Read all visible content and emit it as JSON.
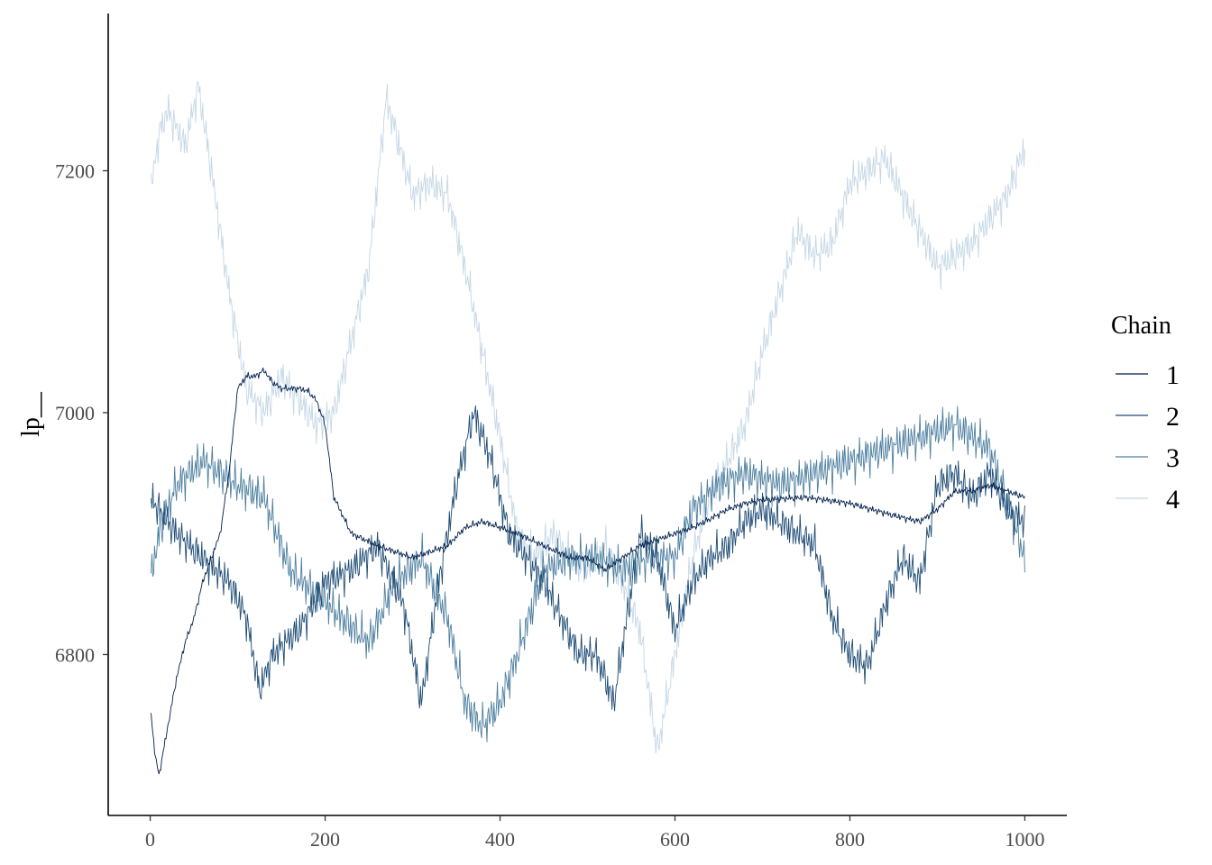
{
  "chart_data": {
    "type": "line",
    "title": "",
    "xlabel": "",
    "ylabel": "lp__",
    "xlim": [
      -48,
      1048
    ],
    "ylim": [
      6667,
      7330
    ],
    "x_ticks": [
      0,
      200,
      400,
      600,
      800,
      1000
    ],
    "x_tick_labels": [
      "0",
      "200",
      "400",
      "600",
      "800",
      "1000"
    ],
    "y_ticks": [
      6800,
      7000,
      7200
    ],
    "y_tick_labels": [
      "6800",
      "7000",
      "7200"
    ],
    "grid": false,
    "legend": {
      "title": "Chain",
      "position": "right"
    },
    "iterations": 1000,
    "series": [
      {
        "name": "1",
        "color": "#011f4b",
        "anchors_x": [
          0,
          5,
          10,
          20,
          30,
          40,
          50,
          60,
          70,
          80,
          90,
          100,
          110,
          120,
          130,
          140,
          150,
          160,
          170,
          180,
          190,
          200,
          210,
          230,
          260,
          300,
          340,
          360,
          380,
          400,
          420,
          450,
          480,
          500,
          520,
          540,
          560,
          580,
          600,
          620,
          640,
          660,
          680,
          700,
          750,
          800,
          850,
          880,
          900,
          920,
          940,
          960,
          980,
          1000
        ],
        "anchors_y": [
          6760,
          6720,
          6700,
          6740,
          6780,
          6810,
          6830,
          6860,
          6880,
          6900,
          6950,
          7020,
          7030,
          7030,
          7035,
          7025,
          7020,
          7020,
          7020,
          7018,
          7010,
          6990,
          6930,
          6900,
          6890,
          6880,
          6890,
          6905,
          6910,
          6905,
          6900,
          6890,
          6880,
          6880,
          6870,
          6880,
          6890,
          6895,
          6900,
          6905,
          6912,
          6920,
          6925,
          6928,
          6930,
          6925,
          6915,
          6910,
          6920,
          6935,
          6935,
          6940,
          6935,
          6930
        ],
        "noise": 3,
        "phase": 0.7
      },
      {
        "name": "2",
        "color": "#1d4b74",
        "anchors_x": [
          0,
          10,
          30,
          60,
          90,
          110,
          125,
          140,
          170,
          200,
          230,
          260,
          290,
          310,
          330,
          350,
          370,
          390,
          410,
          430,
          450,
          470,
          490,
          510,
          530,
          560,
          580,
          600,
          620,
          640,
          660,
          680,
          700,
          720,
          740,
          760,
          780,
          800,
          820,
          840,
          860,
          880,
          900,
          920,
          940,
          960,
          980,
          1000
        ],
        "anchors_y": [
          6930,
          6920,
          6900,
          6880,
          6860,
          6830,
          6770,
          6800,
          6820,
          6860,
          6870,
          6890,
          6840,
          6760,
          6860,
          6940,
          7000,
          6960,
          6900,
          6880,
          6860,
          6830,
          6800,
          6800,
          6760,
          6900,
          6880,
          6820,
          6860,
          6880,
          6890,
          6910,
          6920,
          6910,
          6900,
          6890,
          6830,
          6800,
          6790,
          6840,
          6880,
          6860,
          6940,
          6950,
          6930,
          6950,
          6920,
          6910
        ],
        "noise": 16,
        "phase": 2.1
      },
      {
        "name": "3",
        "color": "#4d7f9f",
        "anchors_x": [
          0,
          10,
          30,
          60,
          80,
          100,
          130,
          160,
          190,
          220,
          250,
          280,
          310,
          340,
          360,
          380,
          400,
          420,
          450,
          480,
          510,
          540,
          570,
          600,
          620,
          650,
          680,
          720,
          760,
          800,
          840,
          880,
          920,
          960,
          1000
        ],
        "anchors_y": [
          6860,
          6900,
          6940,
          6960,
          6950,
          6940,
          6930,
          6870,
          6850,
          6830,
          6810,
          6860,
          6880,
          6830,
          6760,
          6740,
          6760,
          6800,
          6870,
          6880,
          6880,
          6870,
          6880,
          6880,
          6920,
          6940,
          6950,
          6940,
          6950,
          6960,
          6970,
          6980,
          6990,
          6970,
          6880
        ],
        "noise": 18,
        "phase": 4.3
      },
      {
        "name": "4",
        "color": "#c4d7e5",
        "anchors_x": [
          0,
          10,
          20,
          40,
          55,
          70,
          90,
          110,
          130,
          150,
          170,
          190,
          210,
          230,
          250,
          270,
          285,
          300,
          320,
          340,
          360,
          380,
          400,
          420,
          440,
          460,
          480,
          500,
          520,
          540,
          560,
          580,
          600,
          620,
          640,
          660,
          680,
          700,
          720,
          740,
          760,
          780,
          800,
          820,
          840,
          860,
          880,
          900,
          920,
          940,
          960,
          980,
          1000
        ],
        "anchors_y": [
          7180,
          7230,
          7250,
          7220,
          7270,
          7200,
          7100,
          7020,
          7000,
          7030,
          7010,
          6990,
          7000,
          7060,
          7120,
          7260,
          7220,
          7180,
          7190,
          7180,
          7120,
          7050,
          6980,
          6900,
          6880,
          6900,
          6880,
          6870,
          6890,
          6860,
          6820,
          6720,
          6800,
          6880,
          6930,
          6960,
          6990,
          7050,
          7100,
          7150,
          7130,
          7140,
          7190,
          7200,
          7210,
          7180,
          7150,
          7120,
          7130,
          7140,
          7160,
          7180,
          7220
        ],
        "noise": 16,
        "phase": 5.9
      }
    ]
  }
}
